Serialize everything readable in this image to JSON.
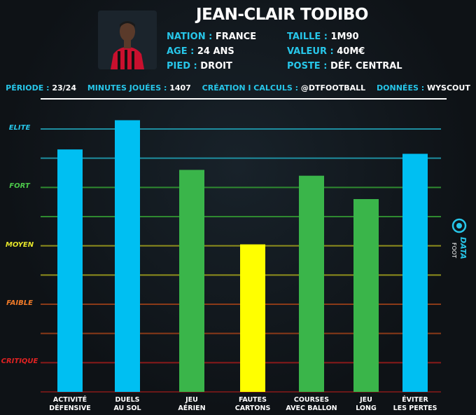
{
  "player": {
    "name": "JEAN-CLAIR TODIBO",
    "nation_label": "NATION :",
    "nation": "FRANCE",
    "age_label": "AGE :",
    "age": "24 ANS",
    "pied_label": "PIED :",
    "pied": "DROIT",
    "taille_label": "TAILLE :",
    "taille": "1M90",
    "valeur_label": "VALEUR :",
    "valeur": "40M€",
    "poste_label": "POSTE :",
    "poste": "DÉF. CENTRAL"
  },
  "meta": {
    "periode_label": "PÉRIODE :",
    "periode": "23/24",
    "minutes_label": "MINUTES JOUÉES :",
    "minutes": "1407",
    "creation_label": "CRÉATION I CALCULS :",
    "creation": "@DTFOOTBALL",
    "donnees_label": "DONNÉES :",
    "donnees": "WYSCOUT"
  },
  "logo": {
    "line1": "DATA",
    "line2": "FOOT"
  },
  "chart_data": {
    "type": "bar",
    "ylim": [
      0,
      9
    ],
    "levels": [
      {
        "name": "ELITE",
        "value": 9,
        "color": "#27c6e9"
      },
      {
        "name": "FORT",
        "value": 7,
        "color": "#4cc84a"
      },
      {
        "name": "MOYEN",
        "value": 5,
        "color": "#e4e42a"
      },
      {
        "name": "FAIBLE",
        "value": 3,
        "color": "#f07a28"
      },
      {
        "name": "CRITIQUE",
        "value": 1,
        "color": "#e02222"
      }
    ],
    "gridlines": [
      {
        "value": 9,
        "color": "#1e8ea0"
      },
      {
        "value": 8,
        "color": "#1e8ea0"
      },
      {
        "value": 7,
        "color": "#2f8a30"
      },
      {
        "value": 6,
        "color": "#2f8a30"
      },
      {
        "value": 5,
        "color": "#8f8f1c"
      },
      {
        "value": 4,
        "color": "#8f8f1c"
      },
      {
        "value": 3,
        "color": "#8a3a18"
      },
      {
        "value": 2,
        "color": "#8a3a18"
      },
      {
        "value": 1,
        "color": "#8a1a1a"
      },
      {
        "value": 0,
        "color": "#6a1818"
      }
    ],
    "bars": [
      {
        "label1": "ACTIVITÉ",
        "label2": "DÉFENSIVE",
        "value": 8.3,
        "color": "#00bff2"
      },
      {
        "label1": "DUELS",
        "label2": "AU SOL",
        "value": 9.3,
        "color": "#00bff2"
      },
      {
        "label1": "JEU",
        "label2": "AÉRIEN",
        "value": 7.6,
        "color": "#3ab54a"
      },
      {
        "label1": "FAUTES",
        "label2": "CARTONS",
        "value": 5.05,
        "color": "#ffff00"
      },
      {
        "label1": "COURSES",
        "label2": "AVEC BALLON",
        "value": 7.4,
        "color": "#3ab54a"
      },
      {
        "label1": "JEU",
        "label2": "LONG",
        "value": 6.6,
        "color": "#3ab54a"
      },
      {
        "label1": "ÉVITER",
        "label2": "LES PERTES",
        "value": 8.15,
        "color": "#00bff2"
      }
    ]
  }
}
